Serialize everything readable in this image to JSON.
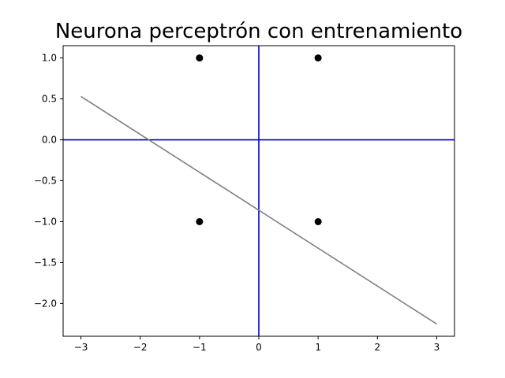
{
  "chart_data": {
    "type": "scatter",
    "title": "Neurona perceptrón con entrenamiento",
    "xlabel": "",
    "ylabel": "",
    "xlim": [
      -3.3,
      3.3
    ],
    "ylim": [
      -2.4,
      1.15
    ],
    "grid": false,
    "x_ticks": [
      -3,
      -2,
      -1,
      0,
      1,
      2,
      3
    ],
    "x_tick_labels": [
      "−3",
      "−2",
      "−1",
      "0",
      "1",
      "2",
      "3"
    ],
    "y_ticks": [
      1.0,
      0.5,
      0.0,
      -0.5,
      -1.0,
      -1.5,
      -2.0
    ],
    "y_tick_labels": [
      "1.0",
      "0.5",
      "0.0",
      "−0.5",
      "−1.0",
      "−1.5",
      "−2.0"
    ],
    "points": [
      {
        "x": -1,
        "y": 1
      },
      {
        "x": 1,
        "y": 1
      },
      {
        "x": -1,
        "y": -1
      },
      {
        "x": 1,
        "y": -1
      }
    ],
    "point_color": "#000000",
    "reference_lines": [
      {
        "orientation": "horizontal",
        "value": 0,
        "color": "#0000bf"
      },
      {
        "orientation": "vertical",
        "value": 0,
        "color": "#0000bf"
      }
    ],
    "decision_line": {
      "x": [
        -3,
        3
      ],
      "y": [
        0.53,
        -2.25
      ],
      "color": "#808080"
    }
  }
}
